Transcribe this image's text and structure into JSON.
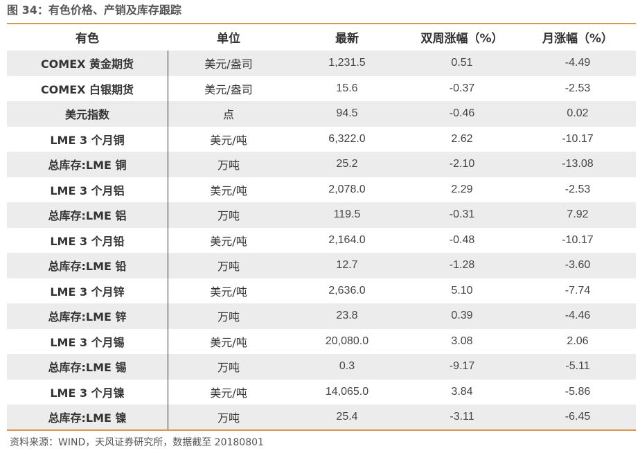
{
  "figure_title": "图 34：有色价格、产销及库存跟踪",
  "table": {
    "headers": [
      "有色",
      "单位",
      "最新",
      "双周涨幅（%）",
      "月涨幅（%）"
    ],
    "rows": [
      [
        "COMEX 黄金期货",
        "美元/盎司",
        "1,231.5",
        "0.51",
        "-4.49"
      ],
      [
        "COMEX 白银期货",
        "美元/盎司",
        "15.6",
        "-0.37",
        "-2.53"
      ],
      [
        "美元指数",
        "点",
        "94.5",
        "-0.46",
        "0.02"
      ],
      [
        "LME 3 个月铜",
        "美元/吨",
        "6,322.0",
        "2.62",
        "-10.17"
      ],
      [
        "总库存:LME 铜",
        "万吨",
        "25.2",
        "-2.10",
        "-13.08"
      ],
      [
        "LME 3 个月铝",
        "美元/吨",
        "2,078.0",
        "2.29",
        "-2.53"
      ],
      [
        "总库存:LME 铝",
        "万吨",
        "119.5",
        "-0.31",
        "7.92"
      ],
      [
        "LME 3 个月铅",
        "美元/吨",
        "2,164.0",
        "-0.48",
        "-10.17"
      ],
      [
        "总库存:LME 铅",
        "万吨",
        "12.7",
        "-1.28",
        "-3.60"
      ],
      [
        "LME 3 个月锌",
        "美元/吨",
        "2,636.0",
        "5.10",
        "-7.74"
      ],
      [
        "总库存:LME 锌",
        "万吨",
        "23.8",
        "0.39",
        "-4.46"
      ],
      [
        "LME 3 个月锡",
        "美元/吨",
        "20,080.0",
        "3.08",
        "2.06"
      ],
      [
        "总库存:LME 锡",
        "万吨",
        "0.3",
        "-9.17",
        "-5.11"
      ],
      [
        "LME 3 个月镍",
        "美元/吨",
        "14,065.0",
        "3.84",
        "-5.86"
      ],
      [
        "总库存:LME 镍",
        "万吨",
        "25.4",
        "-3.11",
        "-6.45"
      ]
    ]
  },
  "source_note": "资料来源：WIND，天风证券研究所，数据截至 20180801",
  "colors": {
    "rule": "#d89850",
    "shaded_row": "#ececec",
    "title_text": "#555555"
  }
}
